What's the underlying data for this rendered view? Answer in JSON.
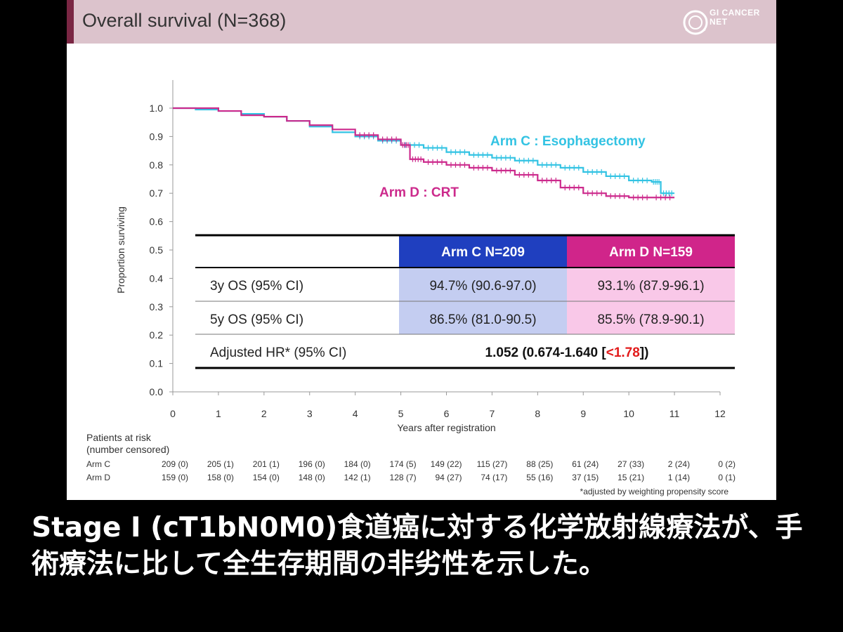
{
  "slide": {
    "title": "Overall survival (N=368)",
    "logo_text": "GI CANCER NET"
  },
  "caption": "Stage Ⅰ (cT1bN0M0)食道癌に対する化学放射線療法が、手術療法に比して全生存期間の非劣性を示した。",
  "chart_data": {
    "type": "line",
    "subtype": "kaplan-meier",
    "title": "Overall survival (N=368)",
    "xlabel": "Years after registration",
    "ylabel": "Proportion surviving",
    "xlim": [
      0,
      12
    ],
    "ylim": [
      0,
      1.0
    ],
    "x_ticks": [
      0,
      1,
      2,
      3,
      4,
      5,
      6,
      7,
      8,
      9,
      10,
      11,
      12
    ],
    "y_ticks": [
      "0.0",
      "0.1",
      "0.2",
      "0.3",
      "0.4",
      "0.5",
      "0.6",
      "0.7",
      "0.8",
      "0.9",
      "1.0"
    ],
    "grid": false,
    "series": [
      {
        "name": "Arm C : Esophagectomy",
        "color": "#33c3e3",
        "x": [
          0,
          0.5,
          1,
          1.5,
          2,
          2.5,
          3,
          3.5,
          4,
          4.5,
          5,
          5.5,
          6,
          6.5,
          7,
          7.5,
          8,
          8.5,
          9,
          9.5,
          10,
          10.5,
          10.7,
          11
        ],
        "y": [
          1.0,
          0.995,
          0.99,
          0.98,
          0.97,
          0.955,
          0.935,
          0.915,
          0.9,
          0.885,
          0.87,
          0.86,
          0.845,
          0.835,
          0.825,
          0.815,
          0.8,
          0.79,
          0.775,
          0.76,
          0.745,
          0.74,
          0.7,
          0.7
        ]
      },
      {
        "name": "Arm D : CRT",
        "color": "#cc2a8c",
        "x": [
          0,
          0.5,
          1,
          1.5,
          2,
          2.5,
          3,
          3.5,
          4,
          4.5,
          5,
          5.2,
          5.5,
          6,
          6.5,
          7,
          7.5,
          8,
          8.5,
          9,
          9.5,
          10,
          10.5,
          11
        ],
        "y": [
          1.0,
          1.0,
          0.99,
          0.975,
          0.97,
          0.955,
          0.94,
          0.925,
          0.905,
          0.89,
          0.87,
          0.82,
          0.81,
          0.8,
          0.79,
          0.78,
          0.765,
          0.745,
          0.72,
          0.7,
          0.69,
          0.685,
          0.685,
          0.685
        ]
      }
    ],
    "series_labels": [
      {
        "text": "Arm C : Esophagectomy",
        "color": "#33c3e3"
      },
      {
        "text": "Arm D : CRT",
        "color": "#cc2a8c"
      }
    ],
    "table": {
      "header_c": "Arm C N=209",
      "header_d": "Arm D N=159",
      "header_c_color": "#1f3fbf",
      "header_d_color": "#d0258a",
      "rows": [
        {
          "label": "3y OS (95% CI)",
          "arm_c": "94.7% (90.6-97.0)",
          "arm_d": "93.1% (87.9-96.1)"
        },
        {
          "label": "5y OS (95% CI)",
          "arm_c": "86.5% (81.0-90.5)",
          "arm_d": "85.5% (78.9-90.1)"
        }
      ],
      "hr_label": "Adjusted HR* (95% CI)",
      "hr_value_prefix": "1.052 (0.674-1.640 [",
      "hr_value_red": "<1.78",
      "hr_value_suffix": "])",
      "hr_red_color": "#e21b1b"
    },
    "at_risk": {
      "title_line1": "Patients at risk",
      "title_line2": "(number censored)",
      "rows": [
        {
          "label": "Arm C",
          "values": [
            "209 (0)",
            "205 (1)",
            "201 (1)",
            "196 (0)",
            "184 (0)",
            "174 (5)",
            "149 (22)",
            "115 (27)",
            "88 (25)",
            "61 (24)",
            "27 (33)",
            "2 (24)",
            "0 (2)"
          ]
        },
        {
          "label": "Arm D",
          "values": [
            "159 (0)",
            "158 (0)",
            "154 (0)",
            "148 (0)",
            "142 (1)",
            "128 (7)",
            "94 (27)",
            "74 (17)",
            "55 (16)",
            "37 (15)",
            "15 (21)",
            "1 (14)",
            "0 (1)"
          ]
        }
      ]
    },
    "footnote": "*adjusted by weighting propensity score"
  }
}
